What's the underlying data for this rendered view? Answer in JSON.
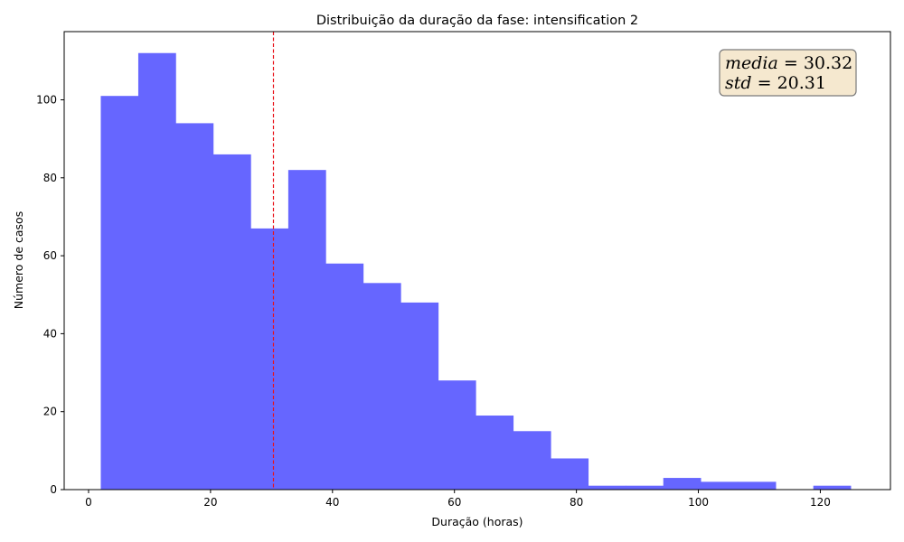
{
  "chart_data": {
    "type": "bar",
    "title": "Distribuição da duração da fase: intensification 2",
    "xlabel": "Duração (horas)",
    "ylabel": "Número de casos",
    "xlim": [
      -4,
      131.5
    ],
    "ylim": [
      0,
      117.5
    ],
    "xticks": [
      0,
      20,
      40,
      60,
      80,
      100,
      120
    ],
    "yticks": [
      0,
      20,
      40,
      60,
      80,
      100
    ],
    "bin_edges": [
      2,
      8.15,
      14.3,
      20.45,
      26.6,
      32.75,
      38.9,
      45.05,
      51.2,
      57.35,
      63.5,
      69.65,
      75.8,
      81.95,
      88.1,
      94.25,
      100.4,
      106.55,
      112.7,
      118.85,
      125
    ],
    "values": [
      101,
      112,
      94,
      86,
      67,
      82,
      58,
      53,
      48,
      28,
      19,
      15,
      8,
      1,
      1,
      3,
      2,
      2,
      0,
      1
    ],
    "bar_color": "#6666ff",
    "mean_line": {
      "value": 30.32,
      "color": "#e8141c",
      "style": "dashed"
    },
    "stats_box": {
      "line1_var": "media",
      "line1_val": "= 30.32",
      "line2_var": "std",
      "line2_val": "= 20.31",
      "background": "#f5e8cf",
      "border": "#7a7a7a",
      "placement": "top-right"
    },
    "grid": false,
    "legend": "none"
  }
}
